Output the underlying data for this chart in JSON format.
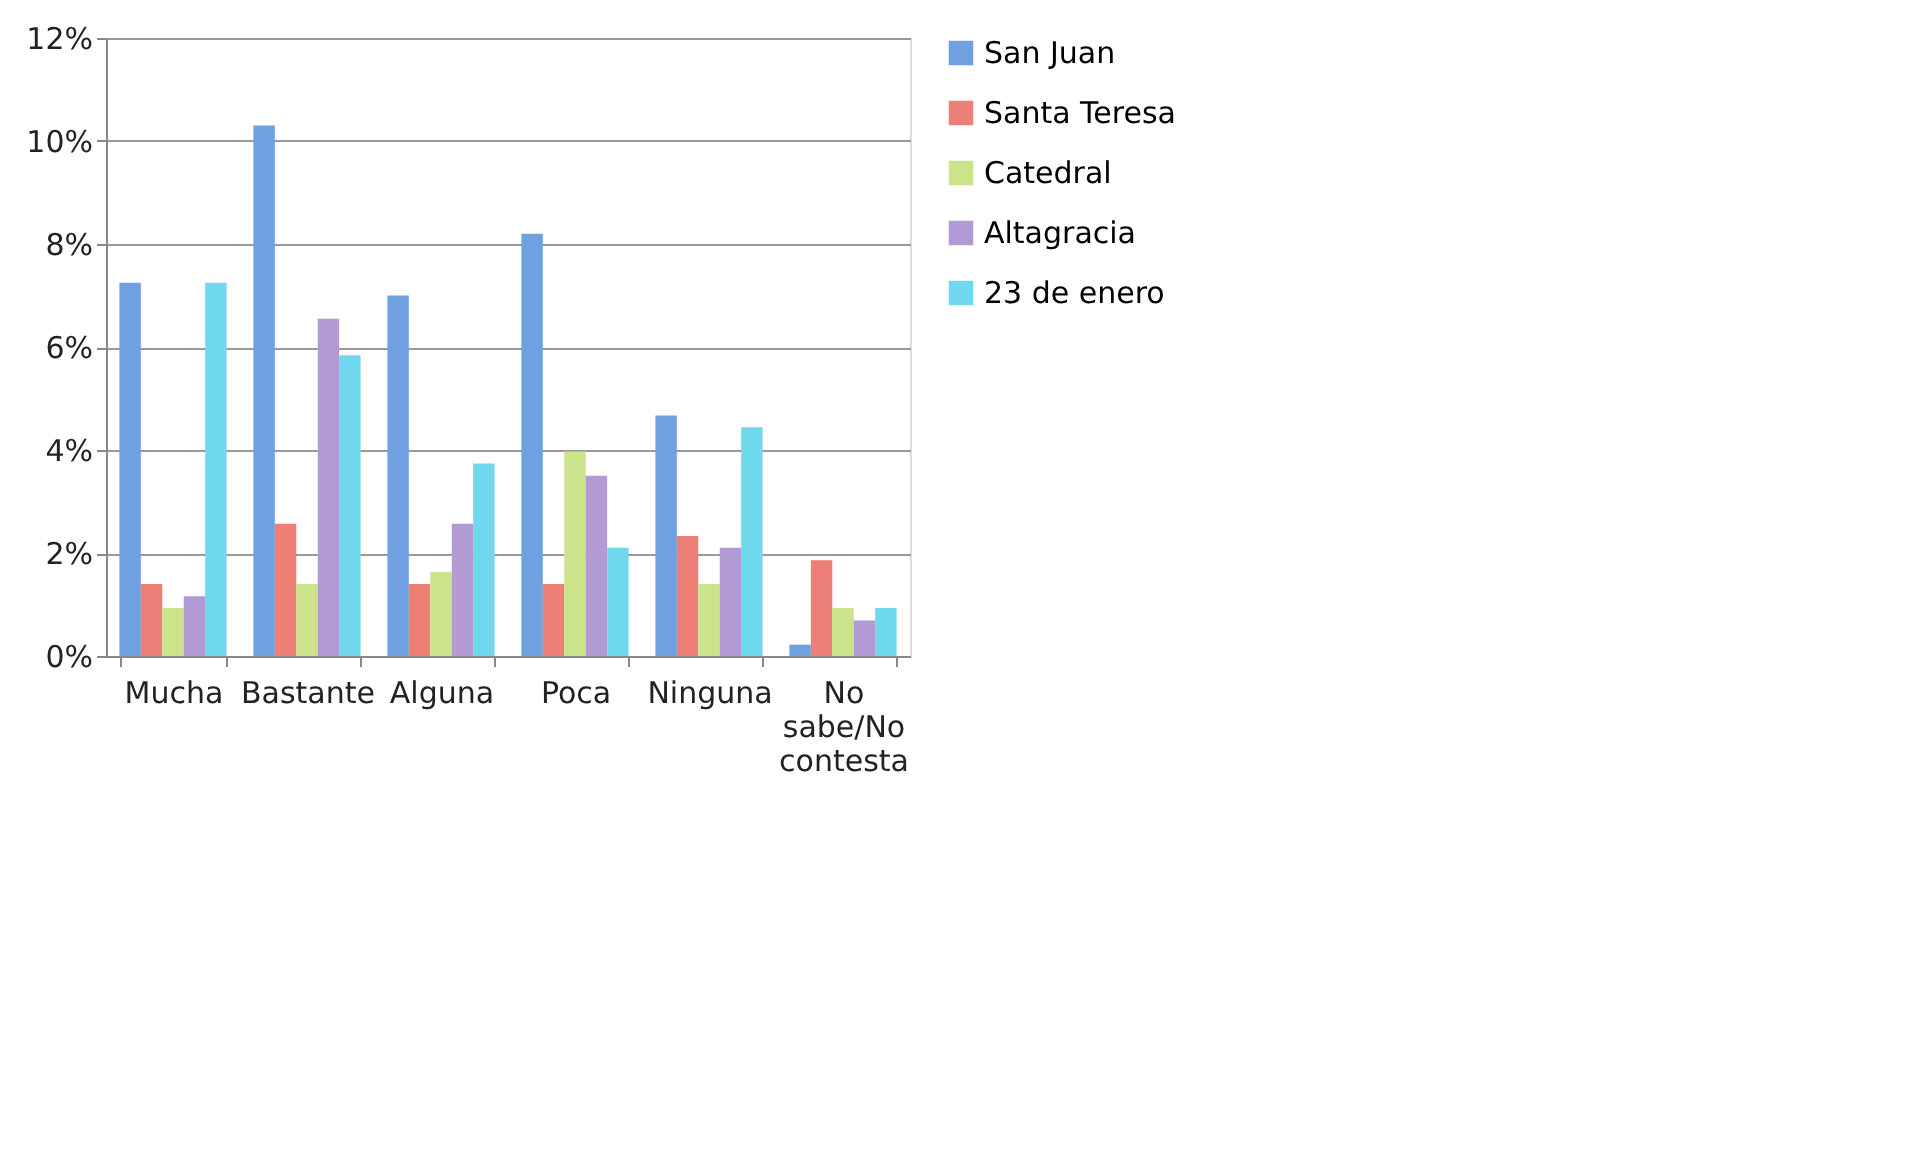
{
  "chart_data": {
    "type": "bar",
    "categories": [
      "Mucha",
      "Bastante",
      "Alguna",
      "Poca",
      "Ninguna",
      "No sabe/No contesta"
    ],
    "series": [
      {
        "name": "San Juan",
        "color": "#6fa0e0",
        "values": [
          7.25,
          10.3,
          7.0,
          8.2,
          4.67,
          0.22
        ]
      },
      {
        "name": "Santa Teresa",
        "color": "#ee7f77",
        "values": [
          1.4,
          2.57,
          1.4,
          1.4,
          2.33,
          1.86
        ]
      },
      {
        "name": "Catedral",
        "color": "#cbe38a",
        "values": [
          0.93,
          1.4,
          1.63,
          3.97,
          1.4,
          0.93
        ]
      },
      {
        "name": "Altagracia",
        "color": "#b29bd4",
        "values": [
          1.16,
          6.55,
          2.57,
          3.5,
          2.1,
          0.69
        ]
      },
      {
        "name": "23 de enero",
        "color": "#6fd8ec",
        "values": [
          7.25,
          5.84,
          3.74,
          2.1,
          4.44,
          0.93
        ]
      }
    ],
    "ylim": [
      0,
      12
    ],
    "yticks": [
      {
        "value": 0,
        "label": "0%"
      },
      {
        "value": 2,
        "label": "2%"
      },
      {
        "value": 4,
        "label": "4%"
      },
      {
        "value": 6,
        "label": "6%"
      },
      {
        "value": 8,
        "label": "8%"
      },
      {
        "value": 10,
        "label": "10%"
      },
      {
        "value": 12,
        "label": "12%"
      }
    ],
    "grid": "y",
    "legend": "right"
  }
}
